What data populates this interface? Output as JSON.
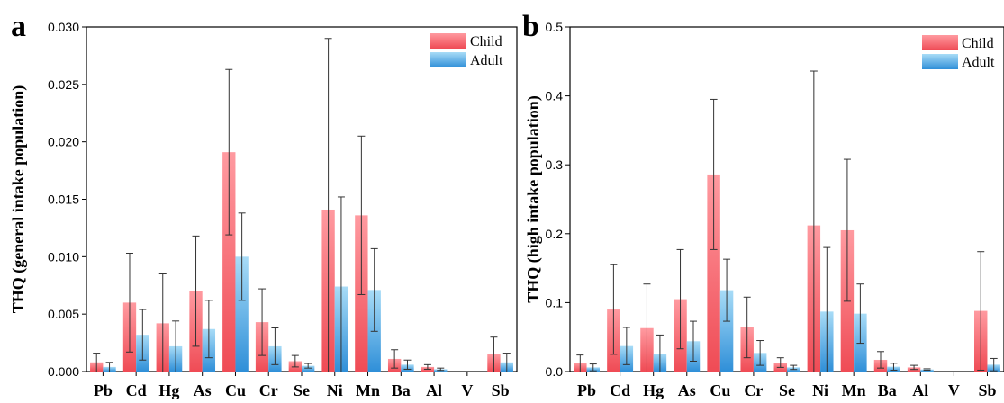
{
  "colors": {
    "child_light": "#ff9aa0",
    "child_dark": "#ef4b55",
    "adult_light": "#a8dcf7",
    "adult_dark": "#2f8fd8",
    "error_bar": "#333333",
    "axis": "#000000"
  },
  "chart_data": [
    {
      "type": "bar",
      "panel_label": "a",
      "ylabel": "THQ (general intake population)",
      "ylim": [
        0,
        0.03
      ],
      "yticks": [
        "0.000",
        "0.005",
        "0.010",
        "0.015",
        "0.020",
        "0.025",
        "0.030"
      ],
      "ytick_values": [
        0,
        0.005,
        0.01,
        0.015,
        0.02,
        0.025,
        0.03
      ],
      "categories": [
        "Pb",
        "Cd",
        "Hg",
        "As",
        "Cu",
        "Cr",
        "Se",
        "Ni",
        "Mn",
        "Ba",
        "Al",
        "V",
        "Sb"
      ],
      "legend_position": "top-right",
      "series": [
        {
          "name": "Child",
          "values": [
            0.0008,
            0.006,
            0.0042,
            0.007,
            0.0191,
            0.0043,
            0.0009,
            0.0141,
            0.0136,
            0.0011,
            0.0004,
            0.0,
            0.0015
          ],
          "errors": [
            0.0008,
            0.0043,
            0.0043,
            0.0048,
            0.0072,
            0.0029,
            0.0005,
            0.0149,
            0.0069,
            0.0008,
            0.0002,
            0.0,
            0.0015
          ]
        },
        {
          "name": "Adult",
          "values": [
            0.0004,
            0.0032,
            0.0022,
            0.0037,
            0.01,
            0.0022,
            0.0005,
            0.0074,
            0.0071,
            0.0006,
            0.0002,
            0.0,
            0.0008
          ],
          "errors": [
            0.0004,
            0.0022,
            0.0022,
            0.0025,
            0.0038,
            0.0016,
            0.0002,
            0.0078,
            0.0036,
            0.0004,
            0.0001,
            0.0,
            0.0008
          ]
        }
      ]
    },
    {
      "type": "bar",
      "panel_label": "b",
      "ylabel": "THQ (high intake population)",
      "ylim": [
        0,
        0.5
      ],
      "yticks": [
        "0.0",
        "0.1",
        "0.2",
        "0.3",
        "0.4",
        "0.5"
      ],
      "ytick_values": [
        0,
        0.1,
        0.2,
        0.3,
        0.4,
        0.5
      ],
      "categories": [
        "Pb",
        "Cd",
        "Hg",
        "As",
        "Cu",
        "Cr",
        "Se",
        "Ni",
        "Mn",
        "Ba",
        "Al",
        "V",
        "Sb"
      ],
      "legend_position": "top-right",
      "series": [
        {
          "name": "Child",
          "values": [
            0.012,
            0.09,
            0.063,
            0.105,
            0.286,
            0.064,
            0.013,
            0.212,
            0.205,
            0.017,
            0.006,
            0.0,
            0.088
          ],
          "errors": [
            0.012,
            0.065,
            0.064,
            0.072,
            0.109,
            0.044,
            0.007,
            0.224,
            0.103,
            0.012,
            0.003,
            0.0,
            0.086
          ]
        },
        {
          "name": "Adult",
          "values": [
            0.006,
            0.037,
            0.026,
            0.044,
            0.118,
            0.027,
            0.006,
            0.087,
            0.084,
            0.007,
            0.003,
            0.0,
            0.01
          ],
          "errors": [
            0.005,
            0.027,
            0.027,
            0.029,
            0.045,
            0.018,
            0.003,
            0.093,
            0.043,
            0.005,
            0.001,
            0.0,
            0.009
          ]
        }
      ]
    }
  ]
}
